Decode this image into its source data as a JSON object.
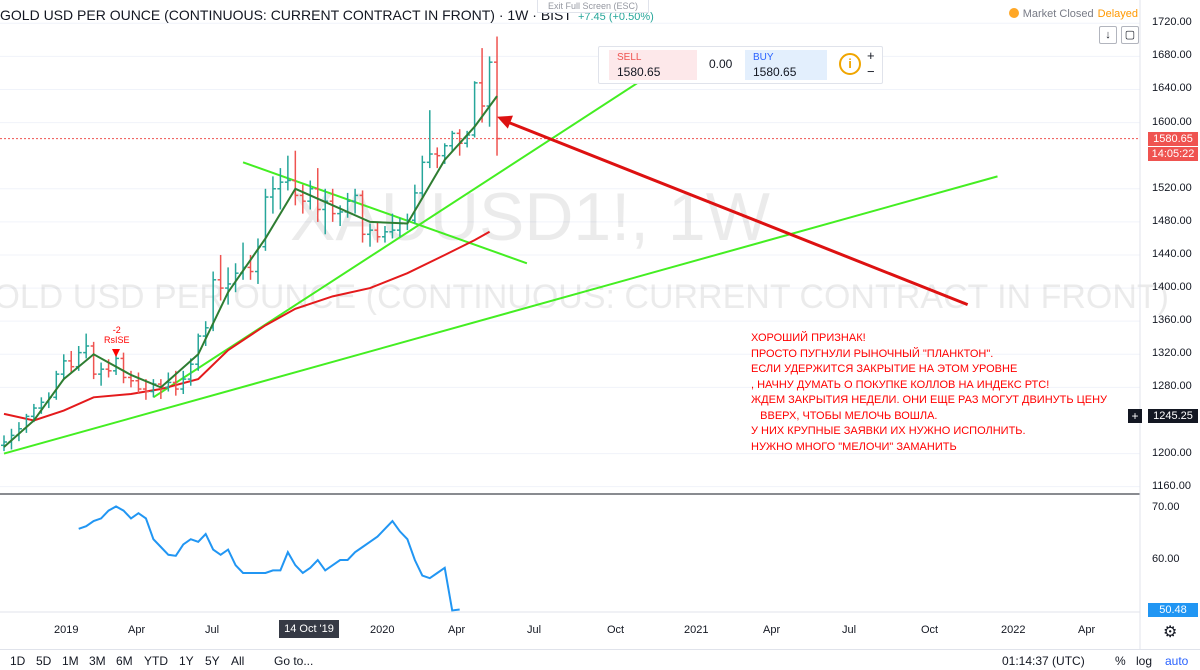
{
  "header": {
    "title": "GOLD USD PER OUNCE (CONTINUOUS: CURRENT CONTRACT IN FRONT) · 1W · BIST",
    "change": "+7.45 (+0.50%)",
    "exit_full_screen": "Exit Full Screen (ESC)",
    "market_status": "Market Closed",
    "data_status": "Delayed"
  },
  "watermark": {
    "symbol": "XAUUSD1!, 1W",
    "description": "GOLD USD PER OUNCE (CONTINUOUS: CURRENT CONTRACT IN FRONT)"
  },
  "trade_panel": {
    "sell_label": "SELL",
    "sell_value": "1580.65",
    "spread": "0.00",
    "buy_label": "BUY",
    "buy_value": "1580.65",
    "info_icon": "i",
    "plus": "+",
    "minus": "−"
  },
  "price_axis": {
    "labels": [
      "1720.00",
      "1680.00",
      "1640.00",
      "1600.00",
      "1520.00",
      "1480.00",
      "1440.00",
      "1400.00",
      "1360.00",
      "1320.00",
      "1280.00",
      "1200.00",
      "1160.00"
    ],
    "last_price": "1580.65",
    "countdown": "14:05:22",
    "crosshair_price": "1245.25"
  },
  "indicator_axis": {
    "labels": [
      "70.00",
      "60.00"
    ],
    "last_value": "50.48"
  },
  "time_axis": {
    "labels": [
      "2019",
      "Apr",
      "Jul",
      "2020",
      "Apr",
      "Jul",
      "Oct",
      "2021",
      "Apr",
      "Jul",
      "Oct",
      "2022",
      "Apr"
    ],
    "crosshair_date": "14 Oct '19"
  },
  "rsi_marker": {
    "count": "-2",
    "label": "RsISE"
  },
  "annotation": "ХОРОШИЙ ПРИЗНАК!\nПРОСТО ПУГНУЛИ РЫНОЧНЫЙ \"ПЛАНКТОН\".\nЕСЛИ УДЕРЖИТСЯ ЗАКРЫТИЕ НА ЭТОМ УРОВНЕ\n, НАЧНУ ДУМАТЬ О ПОКУПКЕ КОЛЛОВ НА ИНДЕКС РТС!\nЖДЕМ ЗАКРЫТИЯ НЕДЕЛИ. ОНИ ЕЩЕ РАЗ МОГУТ ДВИНУТЬ ЦЕНУ\n   ВВЕРХ, ЧТОБЫ МЕЛОЧЬ ВОШЛА.\nУ НИХ КРУПНЫЕ ЗАЯВКИ ИХ НУЖНО ИСПОЛНИТЬ.\nНУЖНО МНОГО \"МЕЛОЧИ\" ЗАМАНИТЬ",
  "bottom_toolbar": {
    "ranges": [
      "1D",
      "5D",
      "1M",
      "3M",
      "6M",
      "YTD",
      "1Y",
      "5Y",
      "All"
    ],
    "goto": "Go to...",
    "clock": "01:14:37 (UTC)",
    "percent": "%",
    "log": "log",
    "auto": "auto"
  },
  "colors": {
    "up_bar": "#26a69a",
    "down_bar": "#ef5350",
    "fast_ma": "#2e7d32",
    "slow_ma": "#e41a1c",
    "trendline": "#44ee22",
    "arrow": "#dd1111",
    "indicator": "#2196f3"
  },
  "chart_data": {
    "type": "bar",
    "timeframe": "1W",
    "price_range": [
      1150,
      1730
    ],
    "price_series_ohlc": [
      {
        "date": "2018-12-07",
        "o": 1210,
        "h": 1222,
        "l": 1203,
        "c": 1214
      },
      {
        "date": "2018-12-14",
        "o": 1214,
        "h": 1230,
        "l": 1205,
        "c": 1222
      },
      {
        "date": "2018-12-21",
        "o": 1222,
        "h": 1238,
        "l": 1215,
        "c": 1230
      },
      {
        "date": "2018-12-28",
        "o": 1230,
        "h": 1248,
        "l": 1225,
        "c": 1245
      },
      {
        "date": "2019-01-04",
        "o": 1245,
        "h": 1260,
        "l": 1238,
        "c": 1255
      },
      {
        "date": "2019-01-11",
        "o": 1255,
        "h": 1268,
        "l": 1248,
        "c": 1262
      },
      {
        "date": "2019-01-18",
        "o": 1262,
        "h": 1274,
        "l": 1255,
        "c": 1268
      },
      {
        "date": "2019-01-25",
        "o": 1268,
        "h": 1300,
        "l": 1265,
        "c": 1296
      },
      {
        "date": "2019-02-01",
        "o": 1296,
        "h": 1320,
        "l": 1290,
        "c": 1312
      },
      {
        "date": "2019-02-08",
        "o": 1312,
        "h": 1324,
        "l": 1298,
        "c": 1305
      },
      {
        "date": "2019-02-15",
        "o": 1305,
        "h": 1330,
        "l": 1300,
        "c": 1322
      },
      {
        "date": "2019-02-22",
        "o": 1322,
        "h": 1345,
        "l": 1315,
        "c": 1330
      },
      {
        "date": "2019-03-01",
        "o": 1330,
        "h": 1335,
        "l": 1290,
        "c": 1296
      },
      {
        "date": "2019-03-08",
        "o": 1296,
        "h": 1310,
        "l": 1282,
        "c": 1302
      },
      {
        "date": "2019-03-15",
        "o": 1302,
        "h": 1314,
        "l": 1292,
        "c": 1300
      },
      {
        "date": "2019-03-22",
        "o": 1300,
        "h": 1325,
        "l": 1295,
        "c": 1315
      },
      {
        "date": "2019-03-29",
        "o": 1315,
        "h": 1322,
        "l": 1285,
        "c": 1292
      },
      {
        "date": "2019-04-05",
        "o": 1292,
        "h": 1300,
        "l": 1280,
        "c": 1288
      },
      {
        "date": "2019-04-12",
        "o": 1288,
        "h": 1298,
        "l": 1272,
        "c": 1278
      },
      {
        "date": "2019-04-19",
        "o": 1278,
        "h": 1290,
        "l": 1265,
        "c": 1275
      },
      {
        "date": "2019-04-26",
        "o": 1275,
        "h": 1290,
        "l": 1268,
        "c": 1284
      },
      {
        "date": "2019-05-03",
        "o": 1284,
        "h": 1290,
        "l": 1266,
        "c": 1280
      },
      {
        "date": "2019-05-10",
        "o": 1280,
        "h": 1298,
        "l": 1275,
        "c": 1286
      },
      {
        "date": "2019-05-17",
        "o": 1286,
        "h": 1300,
        "l": 1270,
        "c": 1278
      },
      {
        "date": "2019-05-24",
        "o": 1278,
        "h": 1300,
        "l": 1272,
        "c": 1290
      },
      {
        "date": "2019-05-31",
        "o": 1290,
        "h": 1315,
        "l": 1282,
        "c": 1308
      },
      {
        "date": "2019-06-07",
        "o": 1308,
        "h": 1345,
        "l": 1300,
        "c": 1342
      },
      {
        "date": "2019-06-14",
        "o": 1342,
        "h": 1360,
        "l": 1330,
        "c": 1352
      },
      {
        "date": "2019-06-21",
        "o": 1352,
        "h": 1420,
        "l": 1348,
        "c": 1410
      },
      {
        "date": "2019-06-28",
        "o": 1410,
        "h": 1440,
        "l": 1385,
        "c": 1400
      },
      {
        "date": "2019-07-05",
        "o": 1400,
        "h": 1425,
        "l": 1380,
        "c": 1405
      },
      {
        "date": "2019-07-12",
        "o": 1405,
        "h": 1430,
        "l": 1395,
        "c": 1418
      },
      {
        "date": "2019-07-19",
        "o": 1418,
        "h": 1455,
        "l": 1410,
        "c": 1425
      },
      {
        "date": "2019-07-26",
        "o": 1425,
        "h": 1440,
        "l": 1410,
        "c": 1420
      },
      {
        "date": "2019-08-02",
        "o": 1420,
        "h": 1460,
        "l": 1405,
        "c": 1450
      },
      {
        "date": "2019-08-09",
        "o": 1450,
        "h": 1520,
        "l": 1445,
        "c": 1510
      },
      {
        "date": "2019-08-16",
        "o": 1510,
        "h": 1535,
        "l": 1490,
        "c": 1520
      },
      {
        "date": "2019-08-23",
        "o": 1520,
        "h": 1545,
        "l": 1495,
        "c": 1528
      },
      {
        "date": "2019-08-30",
        "o": 1528,
        "h": 1560,
        "l": 1518,
        "c": 1530
      },
      {
        "date": "2019-09-06",
        "o": 1530,
        "h": 1566,
        "l": 1500,
        "c": 1512
      },
      {
        "date": "2019-09-13",
        "o": 1512,
        "h": 1525,
        "l": 1490,
        "c": 1505
      },
      {
        "date": "2019-09-20",
        "o": 1505,
        "h": 1530,
        "l": 1495,
        "c": 1520
      },
      {
        "date": "2019-09-27",
        "o": 1520,
        "h": 1545,
        "l": 1480,
        "c": 1495
      },
      {
        "date": "2019-10-04",
        "o": 1495,
        "h": 1520,
        "l": 1465,
        "c": 1505
      },
      {
        "date": "2019-10-11",
        "o": 1505,
        "h": 1520,
        "l": 1480,
        "c": 1490
      },
      {
        "date": "2019-10-18",
        "o": 1490,
        "h": 1500,
        "l": 1475,
        "c": 1492
      },
      {
        "date": "2019-10-25",
        "o": 1492,
        "h": 1515,
        "l": 1485,
        "c": 1505
      },
      {
        "date": "2019-11-01",
        "o": 1505,
        "h": 1520,
        "l": 1490,
        "c": 1512
      },
      {
        "date": "2019-11-08",
        "o": 1512,
        "h": 1518,
        "l": 1455,
        "c": 1465
      },
      {
        "date": "2019-11-15",
        "o": 1465,
        "h": 1478,
        "l": 1450,
        "c": 1470
      },
      {
        "date": "2019-11-22",
        "o": 1470,
        "h": 1480,
        "l": 1455,
        "c": 1462
      },
      {
        "date": "2019-11-29",
        "o": 1462,
        "h": 1475,
        "l": 1455,
        "c": 1468
      },
      {
        "date": "2019-12-06",
        "o": 1468,
        "h": 1490,
        "l": 1460,
        "c": 1470
      },
      {
        "date": "2019-12-13",
        "o": 1470,
        "h": 1485,
        "l": 1462,
        "c": 1478
      },
      {
        "date": "2019-12-20",
        "o": 1478,
        "h": 1490,
        "l": 1470,
        "c": 1482
      },
      {
        "date": "2019-12-27",
        "o": 1482,
        "h": 1525,
        "l": 1478,
        "c": 1515
      },
      {
        "date": "2020-01-03",
        "o": 1515,
        "h": 1560,
        "l": 1510,
        "c": 1552
      },
      {
        "date": "2020-01-10",
        "o": 1552,
        "h": 1615,
        "l": 1545,
        "c": 1562
      },
      {
        "date": "2020-01-17",
        "o": 1562,
        "h": 1570,
        "l": 1545,
        "c": 1560
      },
      {
        "date": "2020-01-24",
        "o": 1560,
        "h": 1575,
        "l": 1550,
        "c": 1572
      },
      {
        "date": "2020-01-31",
        "o": 1572,
        "h": 1590,
        "l": 1565,
        "c": 1587
      },
      {
        "date": "2020-02-07",
        "o": 1587,
        "h": 1592,
        "l": 1560,
        "c": 1575
      },
      {
        "date": "2020-02-14",
        "o": 1575,
        "h": 1590,
        "l": 1570,
        "c": 1585
      },
      {
        "date": "2020-02-21",
        "o": 1585,
        "h": 1650,
        "l": 1582,
        "c": 1648
      },
      {
        "date": "2020-02-28",
        "o": 1648,
        "h": 1690,
        "l": 1600,
        "c": 1620
      },
      {
        "date": "2020-03-06",
        "o": 1620,
        "h": 1680,
        "l": 1595,
        "c": 1673
      },
      {
        "date": "2020-03-13",
        "o": 1673,
        "h": 1704,
        "l": 1560,
        "c": 1580.65
      }
    ],
    "fast_ma": [
      [
        "2018-12-07",
        1208
      ],
      [
        "2019-01-04",
        1240
      ],
      [
        "2019-02-01",
        1290
      ],
      [
        "2019-03-01",
        1320
      ],
      [
        "2019-04-05",
        1295
      ],
      [
        "2019-05-03",
        1280
      ],
      [
        "2019-06-07",
        1320
      ],
      [
        "2019-07-05",
        1395
      ],
      [
        "2019-08-09",
        1460
      ],
      [
        "2019-09-06",
        1520
      ],
      [
        "2019-10-11",
        1500
      ],
      [
        "2019-11-15",
        1480
      ],
      [
        "2019-12-20",
        1478
      ],
      [
        "2020-01-24",
        1555
      ],
      [
        "2020-02-21",
        1595
      ],
      [
        "2020-03-13",
        1632
      ]
    ],
    "slow_ma": [
      [
        "2018-12-07",
        1248
      ],
      [
        "2019-01-04",
        1240
      ],
      [
        "2019-02-01",
        1252
      ],
      [
        "2019-03-01",
        1268
      ],
      [
        "2019-04-05",
        1272
      ],
      [
        "2019-05-03",
        1278
      ],
      [
        "2019-06-07",
        1290
      ],
      [
        "2019-07-05",
        1325
      ],
      [
        "2019-08-09",
        1355
      ],
      [
        "2019-09-06",
        1375
      ],
      [
        "2019-10-11",
        1390
      ],
      [
        "2019-11-15",
        1400
      ],
      [
        "2019-12-20",
        1418
      ],
      [
        "2020-01-24",
        1440
      ],
      [
        "2020-02-21",
        1458
      ],
      [
        "2020-03-06",
        1468
      ]
    ],
    "trendlines": [
      {
        "from": [
          "2018-12-07",
          1200
        ],
        "to": [
          "2021-06-25",
          1535
        ],
        "color": "trendline"
      },
      {
        "from": [
          "2019-04-26",
          1268
        ],
        "to": [
          "2020-09-11",
          1690
        ],
        "color": "trendline"
      },
      {
        "from": [
          "2019-07-19",
          1552
        ],
        "to": [
          "2020-04-10",
          1430
        ],
        "color": "trendline"
      }
    ],
    "arrow": {
      "from": [
        "2021-05-28",
        1380
      ],
      "to": [
        "2020-03-13",
        1607
      ]
    },
    "indicator": {
      "range": [
        48,
        74
      ],
      "series": [
        [
          "2019-02-15",
          66.0
        ],
        [
          "2019-02-22",
          66.5
        ],
        [
          "2019-03-01",
          67.5
        ],
        [
          "2019-03-08",
          68.0
        ],
        [
          "2019-03-15",
          69.5
        ],
        [
          "2019-03-22",
          70.3
        ],
        [
          "2019-03-29",
          69.5
        ],
        [
          "2019-04-05",
          68.0
        ],
        [
          "2019-04-12",
          69.0
        ],
        [
          "2019-04-19",
          68.0
        ],
        [
          "2019-04-26",
          64.0
        ],
        [
          "2019-05-03",
          62.5
        ],
        [
          "2019-05-10",
          61.0
        ],
        [
          "2019-05-17",
          60.8
        ],
        [
          "2019-05-24",
          63.0
        ],
        [
          "2019-05-31",
          64.0
        ],
        [
          "2019-06-07",
          63.5
        ],
        [
          "2019-06-14",
          65.0
        ],
        [
          "2019-06-21",
          62.0
        ],
        [
          "2019-06-28",
          61.0
        ],
        [
          "2019-07-05",
          62.0
        ],
        [
          "2019-07-12",
          59.0
        ],
        [
          "2019-07-19",
          57.5
        ],
        [
          "2019-07-26",
          57.5
        ],
        [
          "2019-08-02",
          57.5
        ],
        [
          "2019-08-09",
          57.5
        ],
        [
          "2019-08-16",
          58.0
        ],
        [
          "2019-08-23",
          58.0
        ],
        [
          "2019-08-30",
          61.5
        ],
        [
          "2019-09-06",
          59.0
        ],
        [
          "2019-09-13",
          57.5
        ],
        [
          "2019-09-20",
          58.5
        ],
        [
          "2019-09-27",
          60.0
        ],
        [
          "2019-10-04",
          58.0
        ],
        [
          "2019-10-11",
          59.0
        ],
        [
          "2019-10-18",
          60.0
        ],
        [
          "2019-10-25",
          60.0
        ],
        [
          "2019-11-01",
          61.5
        ],
        [
          "2019-11-08",
          62.5
        ],
        [
          "2019-11-15",
          63.5
        ],
        [
          "2019-11-22",
          64.5
        ],
        [
          "2019-11-29",
          66.0
        ],
        [
          "2019-12-06",
          67.5
        ],
        [
          "2019-12-13",
          65.5
        ],
        [
          "2019-12-20",
          64.0
        ],
        [
          "2019-12-27",
          60.0
        ],
        [
          "2020-01-03",
          57.0
        ],
        [
          "2020-01-10",
          56.5
        ],
        [
          "2020-01-17",
          57.5
        ],
        [
          "2020-01-24",
          58.5
        ],
        [
          "2020-01-31",
          50.3
        ],
        [
          "2020-02-07",
          50.48
        ]
      ]
    },
    "xlabel": "",
    "ylabel": ""
  }
}
